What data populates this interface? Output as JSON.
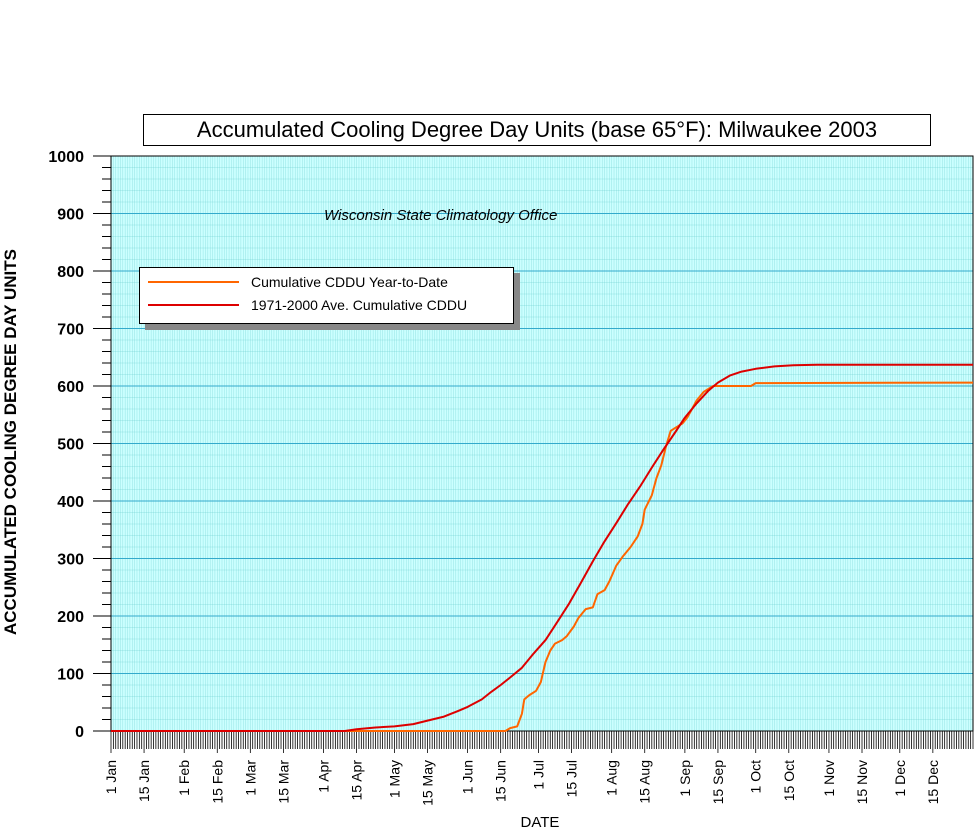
{
  "chart_data": {
    "type": "line",
    "title": "Accumulated Cooling Degree Day Units (base 65°F): Milwaukee 2003",
    "annotation": "Wisconsin State Climatology Office",
    "xlabel": "DATE",
    "ylabel": "ACCUMULATED COOLING DEGREE DAY UNITS",
    "ylim": [
      0,
      1000
    ],
    "xlim": [
      1,
      366
    ],
    "y_ticks": [
      "0",
      "100",
      "200",
      "300",
      "400",
      "500",
      "600",
      "700",
      "800",
      "900",
      "1000"
    ],
    "x_ticks": [
      {
        "label": "1 Jan",
        "day": 1
      },
      {
        "label": "15 Jan",
        "day": 15
      },
      {
        "label": "1 Feb",
        "day": 32
      },
      {
        "label": "15 Feb",
        "day": 46
      },
      {
        "label": "1 Mar",
        "day": 60
      },
      {
        "label": "15 Mar",
        "day": 74
      },
      {
        "label": "1 Apr",
        "day": 91
      },
      {
        "label": "15 Apr",
        "day": 105
      },
      {
        "label": "1 May",
        "day": 121
      },
      {
        "label": "15 May",
        "day": 135
      },
      {
        "label": "1 Jun",
        "day": 152
      },
      {
        "label": "15 Jun",
        "day": 166
      },
      {
        "label": "1 Jul",
        "day": 182
      },
      {
        "label": "15 Jul",
        "day": 196
      },
      {
        "label": "1 Aug",
        "day": 213
      },
      {
        "label": "15 Aug",
        "day": 227
      },
      {
        "label": "1 Sep",
        "day": 244
      },
      {
        "label": "15 Sep",
        "day": 258
      },
      {
        "label": "1 Oct",
        "day": 274
      },
      {
        "label": "15 Oct",
        "day": 288
      },
      {
        "label": "1 Nov",
        "day": 305
      },
      {
        "label": "15 Nov",
        "day": 319
      },
      {
        "label": "1 Dec",
        "day": 335
      },
      {
        "label": "15 Dec",
        "day": 349
      }
    ],
    "grid": true,
    "legend_position": "upper-left",
    "background_color": "#ccffff",
    "grid_color": "#66cccc",
    "series": [
      {
        "name": "Cumulative CDDU Year-to-Date",
        "color": "#ff6600",
        "points": [
          [
            1,
            0
          ],
          [
            168,
            0
          ],
          [
            170,
            5
          ],
          [
            173,
            8
          ],
          [
            175,
            30
          ],
          [
            176,
            55
          ],
          [
            178,
            62
          ],
          [
            181,
            70
          ],
          [
            183,
            85
          ],
          [
            185,
            120
          ],
          [
            187,
            140
          ],
          [
            189,
            152
          ],
          [
            192,
            158
          ],
          [
            194,
            165
          ],
          [
            197,
            182
          ],
          [
            199,
            197
          ],
          [
            202,
            212
          ],
          [
            205,
            215
          ],
          [
            207,
            238
          ],
          [
            210,
            245
          ],
          [
            212,
            260
          ],
          [
            215,
            288
          ],
          [
            218,
            305
          ],
          [
            221,
            320
          ],
          [
            224,
            338
          ],
          [
            226,
            360
          ],
          [
            227,
            385
          ],
          [
            230,
            410
          ],
          [
            232,
            440
          ],
          [
            234,
            462
          ],
          [
            236,
            495
          ],
          [
            238,
            522
          ],
          [
            241,
            530
          ],
          [
            243,
            535
          ],
          [
            245,
            545
          ],
          [
            247,
            560
          ],
          [
            249,
            575
          ],
          [
            252,
            590
          ],
          [
            254,
            595
          ],
          [
            256,
            600
          ],
          [
            272,
            600
          ],
          [
            274,
            605
          ],
          [
            366,
            606
          ]
        ]
      },
      {
        "name": "1971-2000 Ave. Cumulative CDDU",
        "color": "#dd0000",
        "points": [
          [
            1,
            0
          ],
          [
            100,
            0
          ],
          [
            105,
            3
          ],
          [
            113,
            6
          ],
          [
            121,
            8
          ],
          [
            129,
            12
          ],
          [
            135,
            18
          ],
          [
            142,
            25
          ],
          [
            148,
            35
          ],
          [
            152,
            42
          ],
          [
            158,
            55
          ],
          [
            162,
            68
          ],
          [
            166,
            80
          ],
          [
            170,
            93
          ],
          [
            175,
            110
          ],
          [
            180,
            135
          ],
          [
            185,
            158
          ],
          [
            190,
            190
          ],
          [
            195,
            222
          ],
          [
            200,
            258
          ],
          [
            205,
            295
          ],
          [
            210,
            330
          ],
          [
            215,
            362
          ],
          [
            220,
            395
          ],
          [
            225,
            425
          ],
          [
            230,
            458
          ],
          [
            235,
            490
          ],
          [
            240,
            520
          ],
          [
            244,
            545
          ],
          [
            249,
            570
          ],
          [
            254,
            592
          ],
          [
            258,
            606
          ],
          [
            263,
            618
          ],
          [
            268,
            625
          ],
          [
            274,
            630
          ],
          [
            282,
            634
          ],
          [
            290,
            636
          ],
          [
            300,
            637
          ],
          [
            366,
            637
          ]
        ]
      }
    ]
  }
}
